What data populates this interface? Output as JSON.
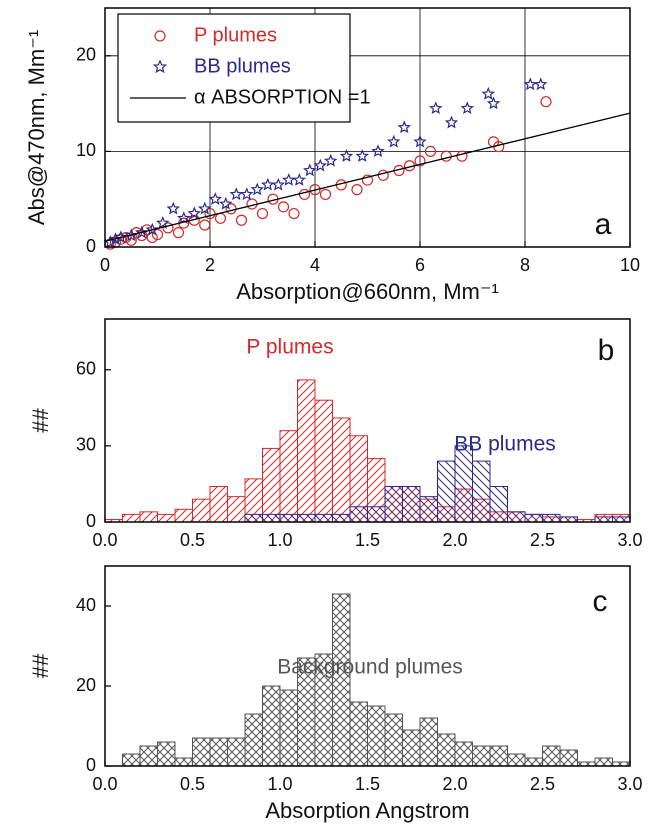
{
  "chart_data": [
    {
      "type": "scatter",
      "panel_label": "a",
      "xlabel": "Absorption@660nm, Mm⁻¹",
      "ylabel": "Abs@470nm, Mm⁻¹",
      "xlim": [
        0,
        10
      ],
      "ylim": [
        0,
        25
      ],
      "xticks": [
        0,
        2,
        4,
        6,
        8,
        10
      ],
      "yticks": [
        0,
        10,
        20
      ],
      "grid": true,
      "legend": "upper left",
      "series": [
        {
          "name": "P plumes",
          "color": "#d42a2a",
          "marker": "circle",
          "x": [
            0.1,
            0.2,
            0.3,
            0.4,
            0.5,
            0.6,
            0.7,
            0.8,
            0.9,
            1.0,
            1.2,
            1.4,
            1.5,
            1.7,
            1.9,
            2.0,
            2.2,
            2.4,
            2.6,
            2.8,
            3.0,
            3.2,
            3.4,
            3.6,
            3.8,
            4.0,
            4.2,
            4.5,
            4.8,
            5.0,
            5.3,
            5.6,
            5.8,
            6.0,
            6.2,
            6.5,
            6.8,
            7.4,
            7.5,
            8.4
          ],
          "y": [
            0.3,
            0.5,
            0.8,
            1.0,
            0.7,
            1.5,
            1.2,
            1.8,
            1.0,
            1.3,
            2.0,
            1.5,
            2.5,
            2.8,
            2.3,
            3.5,
            3.0,
            4.0,
            2.8,
            4.5,
            3.5,
            5.0,
            4.2,
            3.5,
            5.5,
            6.0,
            5.5,
            6.5,
            6.0,
            7.0,
            7.5,
            8.0,
            8.5,
            9.0,
            10.0,
            9.5,
            9.5,
            11.0,
            10.5,
            15.2
          ]
        },
        {
          "name": "BB plumes",
          "color": "#2a2a8c",
          "marker": "star",
          "x": [
            0.1,
            0.2,
            0.3,
            0.5,
            0.7,
            0.9,
            1.1,
            1.3,
            1.5,
            1.7,
            1.9,
            2.1,
            2.3,
            2.5,
            2.7,
            2.9,
            3.1,
            3.3,
            3.5,
            3.7,
            3.9,
            4.1,
            4.3,
            4.6,
            4.9,
            5.2,
            5.5,
            5.7,
            6.0,
            6.3,
            6.6,
            6.9,
            7.3,
            7.4,
            8.1,
            8.3
          ],
          "y": [
            0.5,
            0.8,
            1.0,
            1.2,
            1.5,
            1.8,
            2.5,
            4.0,
            3.0,
            3.5,
            4.0,
            5.0,
            4.5,
            5.5,
            5.5,
            6.0,
            6.5,
            6.5,
            7.0,
            7.0,
            8.0,
            8.5,
            9.0,
            9.5,
            9.5,
            10.0,
            11.0,
            12.5,
            11.0,
            14.5,
            13.0,
            14.5,
            16.0,
            15.0,
            17.0,
            17.0
          ]
        },
        {
          "name": "α ABSORPTION =1",
          "color": "#000000",
          "marker": "line",
          "x": [
            0,
            10
          ],
          "y": [
            0.6,
            14
          ]
        }
      ]
    },
    {
      "type": "histogram",
      "panel_label": "b",
      "ylabel": "##",
      "xlim": [
        0,
        3
      ],
      "ylim": [
        0,
        80
      ],
      "xticks": [
        {
          "value": 0,
          "label": "0.0"
        },
        0.5,
        {
          "value": 1,
          "label": "1.0"
        },
        1.5,
        {
          "value": 2,
          "label": "2.0"
        },
        2.5,
        {
          "value": 3,
          "label": "3.0"
        }
      ],
      "yticks": [
        0,
        30,
        60
      ],
      "bins": [
        0,
        0.1,
        0.2,
        0.3,
        0.4,
        0.5,
        0.6,
        0.7,
        0.8,
        0.9,
        1.0,
        1.1,
        1.2,
        1.3,
        1.4,
        1.5,
        1.6,
        1.7,
        1.8,
        1.9,
        2.0,
        2.1,
        2.2,
        2.3,
        2.4,
        2.5,
        2.6,
        2.7,
        2.8,
        2.9,
        3.0
      ],
      "series": [
        {
          "name": "P plumes",
          "color": "#d42a2a",
          "hatch": "diagonal",
          "values": [
            1,
            3,
            4,
            3,
            5,
            9,
            14,
            10,
            17,
            29,
            36,
            56,
            48,
            41,
            34,
            25,
            14,
            14,
            9,
            6,
            13,
            9,
            4,
            4,
            3,
            2,
            2,
            1,
            3,
            3
          ]
        },
        {
          "name": "BB plumes",
          "color": "#2a2a8c",
          "hatch": "antidiagonal",
          "values": [
            0,
            0,
            0,
            0,
            0,
            0,
            0,
            0,
            3,
            3,
            3,
            3,
            3,
            3,
            6,
            6,
            14,
            14,
            10,
            24,
            30,
            24,
            14,
            4,
            3,
            3,
            2,
            0,
            2,
            2
          ]
        }
      ]
    },
    {
      "type": "histogram",
      "panel_label": "c",
      "ylabel": "##",
      "xlabel": "Absorption Angstrom",
      "xlim": [
        0,
        3
      ],
      "ylim": [
        0,
        50
      ],
      "xticks": [
        {
          "value": 0,
          "label": "0.0"
        },
        0.5,
        {
          "value": 1,
          "label": "1.0"
        },
        1.5,
        {
          "value": 2,
          "label": "2.0"
        },
        2.5,
        {
          "value": 3,
          "label": "3.0"
        }
      ],
      "yticks": [
        0,
        20,
        40
      ],
      "bins": [
        0,
        0.1,
        0.2,
        0.3,
        0.4,
        0.5,
        0.6,
        0.7,
        0.8,
        0.9,
        1.0,
        1.1,
        1.2,
        1.3,
        1.4,
        1.5,
        1.6,
        1.7,
        1.8,
        1.9,
        2.0,
        2.1,
        2.2,
        2.3,
        2.4,
        2.5,
        2.6,
        2.7,
        2.8,
        2.9,
        3.0
      ],
      "series": [
        {
          "name": "Background plumes",
          "color": "#555555",
          "hatch": "cross",
          "values": [
            0,
            3,
            5,
            6,
            2,
            7,
            7,
            7,
            13,
            20,
            19,
            27,
            28,
            43,
            16,
            15,
            13,
            9,
            12,
            8,
            6,
            5,
            5,
            3,
            2,
            5,
            4,
            1,
            2,
            1
          ]
        }
      ]
    }
  ]
}
